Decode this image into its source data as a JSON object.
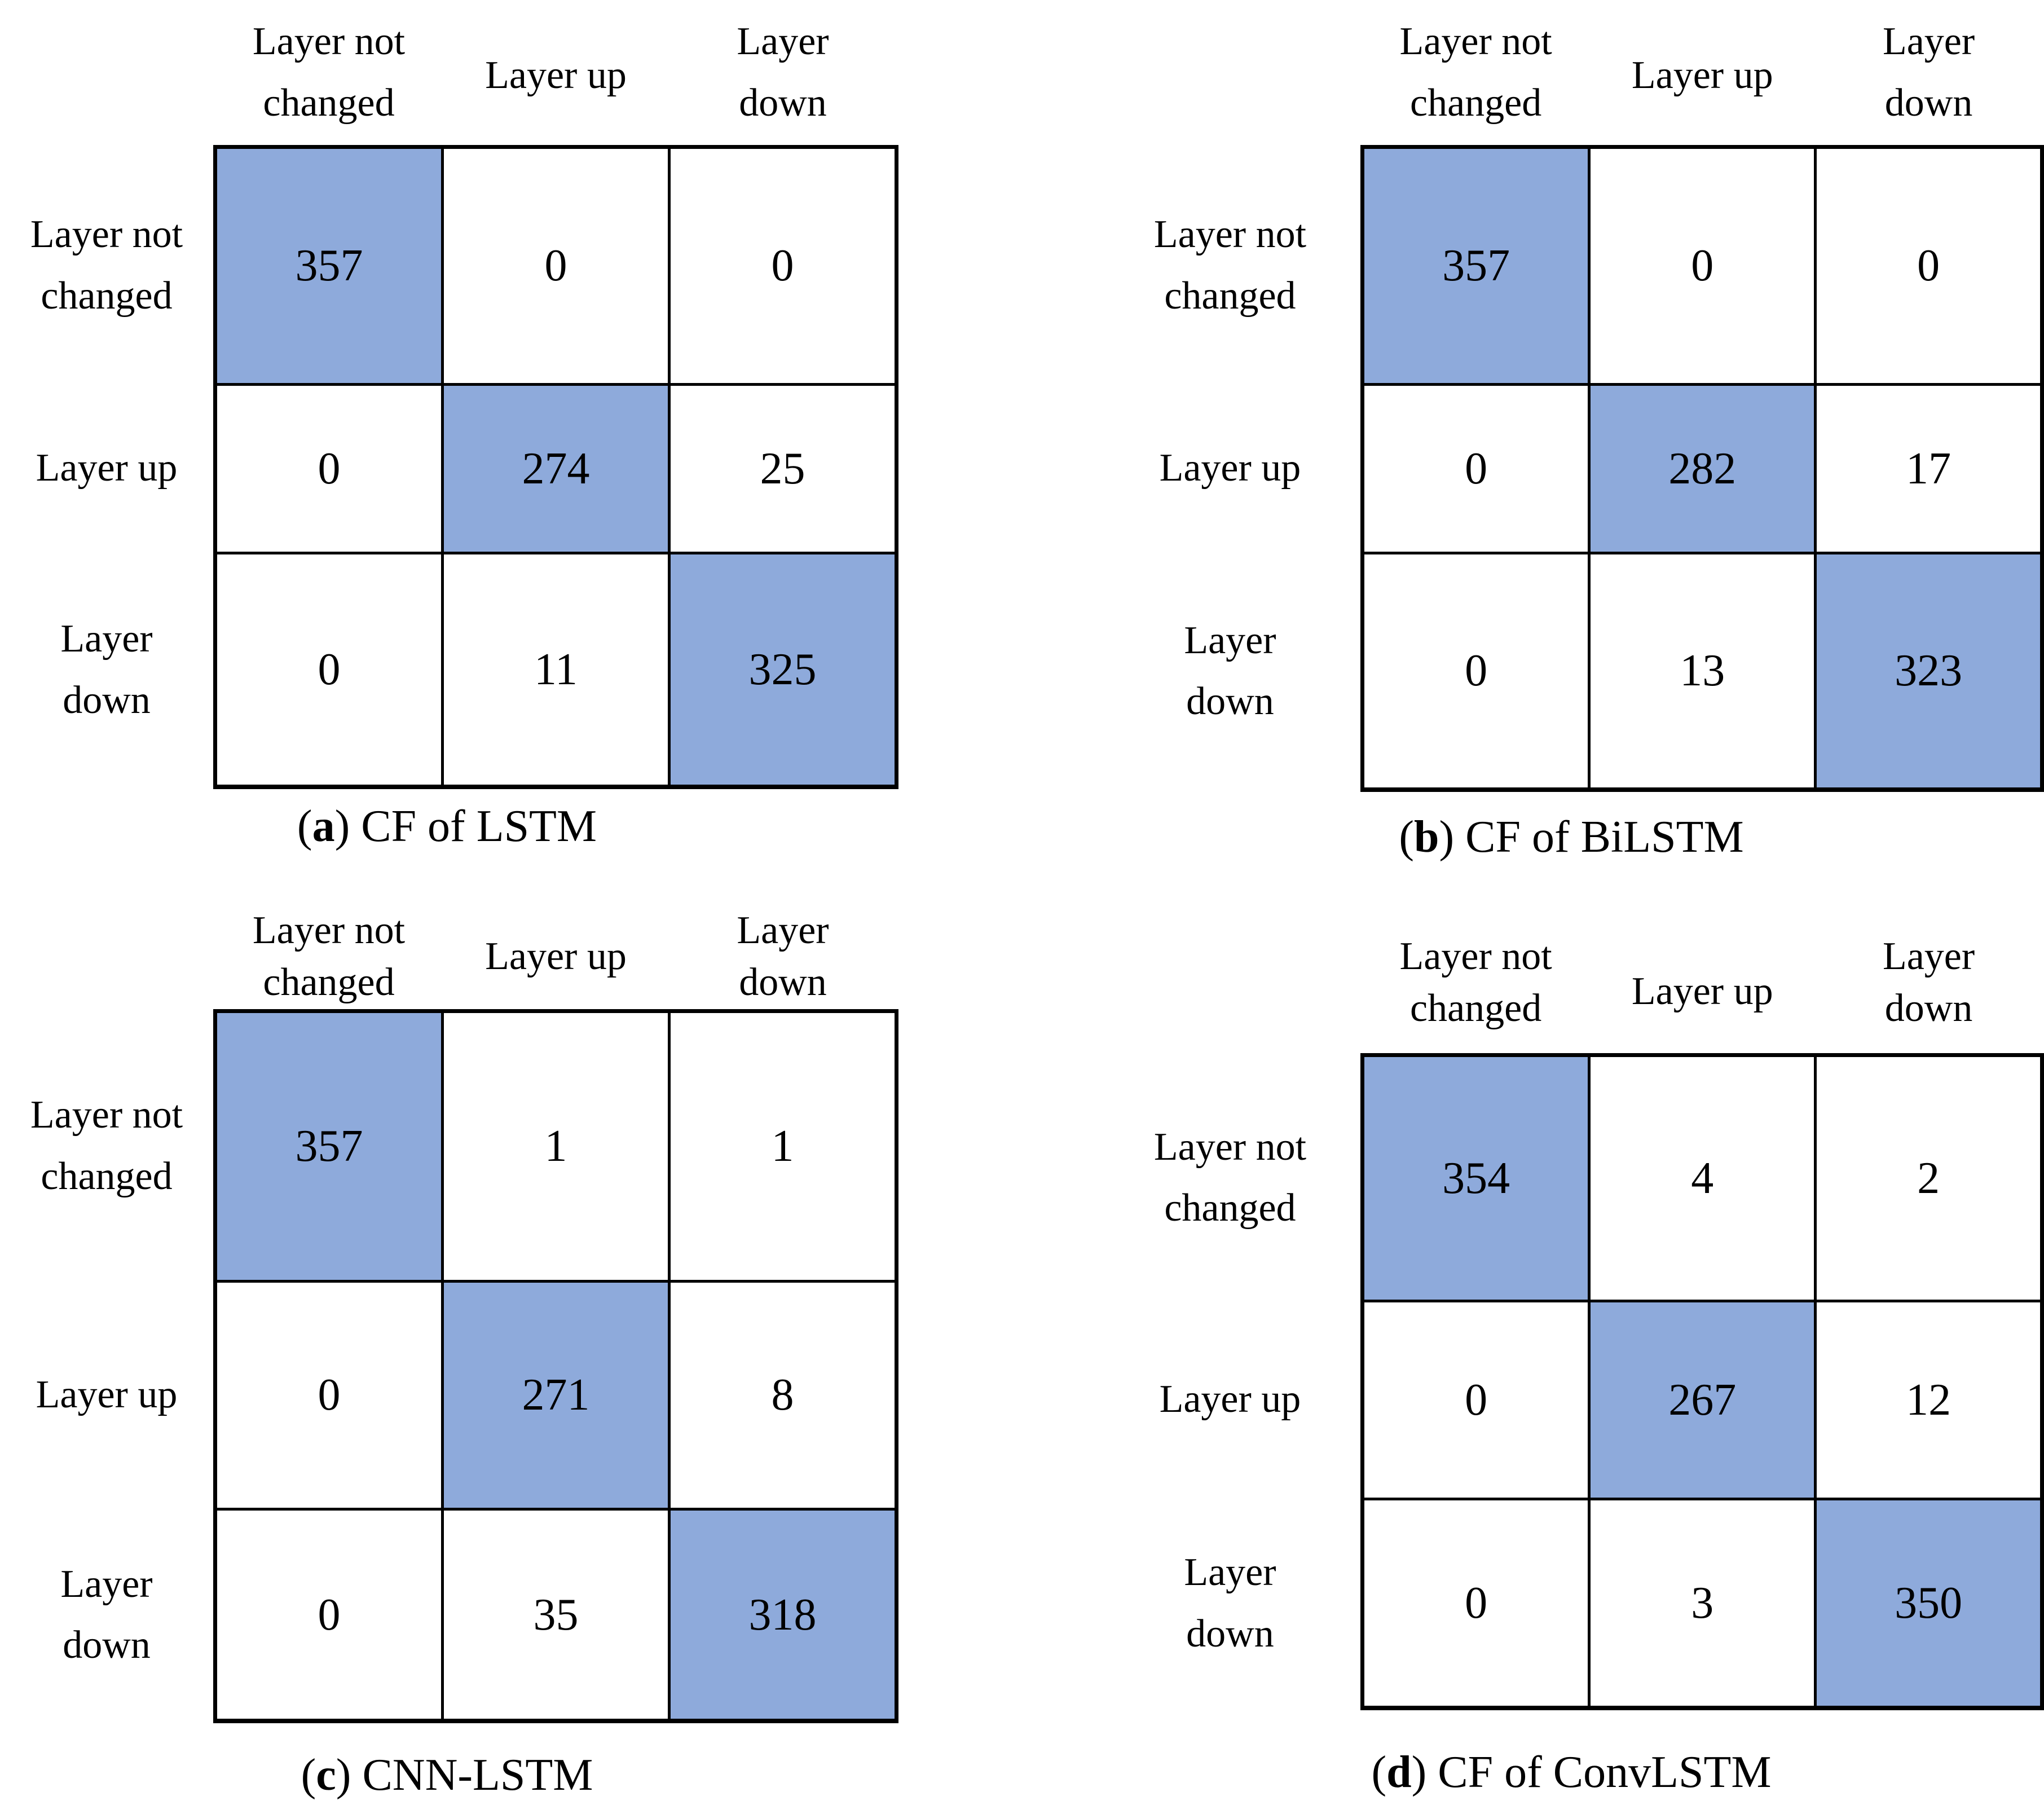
{
  "figure": {
    "background_color": "#ffffff",
    "highlight_color": "#8EAADB",
    "border_color": "#000000",
    "text_color": "#000000"
  },
  "panels": [
    {
      "cap_open": "(",
      "cap_letter": "a",
      "cap_rest": ") CF of LSTM",
      "col_headers": [
        {
          "l1": "Layer not",
          "l2": "changed"
        },
        {
          "l1": "Layer up",
          "l2": ""
        },
        {
          "l1": "Layer",
          "l2": "down"
        }
      ],
      "row_headers": [
        {
          "l1": "Layer not",
          "l2": "changed"
        },
        {
          "l1": "Layer up",
          "l2": ""
        },
        {
          "l1": "Layer",
          "l2": "down"
        }
      ],
      "matrix": [
        [
          "357",
          "0",
          "0"
        ],
        [
          "0",
          "274",
          "25"
        ],
        [
          "0",
          "11",
          "325"
        ]
      ]
    },
    {
      "cap_open": "(",
      "cap_letter": "b",
      "cap_rest": ") CF of BiLSTM",
      "col_headers": [
        {
          "l1": "Layer not",
          "l2": "changed"
        },
        {
          "l1": "Layer up",
          "l2": ""
        },
        {
          "l1": "Layer",
          "l2": "down"
        }
      ],
      "row_headers": [
        {
          "l1": "Layer not",
          "l2": "changed"
        },
        {
          "l1": "Layer up",
          "l2": ""
        },
        {
          "l1": "Layer",
          "l2": "down"
        }
      ],
      "matrix": [
        [
          "357",
          "0",
          "0"
        ],
        [
          "0",
          "282",
          "17"
        ],
        [
          "0",
          "13",
          "323"
        ]
      ]
    },
    {
      "cap_open": "(",
      "cap_letter": "c",
      "cap_rest": ") CNN-LSTM",
      "col_headers": [
        {
          "l1": "Layer not",
          "l2": "changed"
        },
        {
          "l1": "Layer up",
          "l2": ""
        },
        {
          "l1": "Layer",
          "l2": "down"
        }
      ],
      "row_headers": [
        {
          "l1": "Layer not",
          "l2": "changed"
        },
        {
          "l1": "Layer up",
          "l2": ""
        },
        {
          "l1": "Layer",
          "l2": "down"
        }
      ],
      "matrix": [
        [
          "357",
          "1",
          "1"
        ],
        [
          "0",
          "271",
          "8"
        ],
        [
          "0",
          "35",
          "318"
        ]
      ]
    },
    {
      "cap_open": "(",
      "cap_letter": "d",
      "cap_rest": ") CF of ConvLSTM",
      "col_headers": [
        {
          "l1": "Layer not",
          "l2": "changed"
        },
        {
          "l1": "Layer up",
          "l2": ""
        },
        {
          "l1": "Layer",
          "l2": "down"
        }
      ],
      "row_headers": [
        {
          "l1": "Layer not",
          "l2": "changed"
        },
        {
          "l1": "Layer up",
          "l2": ""
        },
        {
          "l1": "Layer",
          "l2": "down"
        }
      ],
      "matrix": [
        [
          "354",
          "4",
          "2"
        ],
        [
          "0",
          "267",
          "12"
        ],
        [
          "0",
          "3",
          "350"
        ]
      ]
    }
  ],
  "chart_data": [
    {
      "type": "heatmap",
      "title": "(a) CF of LSTM",
      "x_categories": [
        "Layer not changed",
        "Layer up",
        "Layer down"
      ],
      "y_categories": [
        "Layer not changed",
        "Layer up",
        "Layer down"
      ],
      "values": [
        [
          357,
          0,
          0
        ],
        [
          0,
          274,
          25
        ],
        [
          0,
          11,
          325
        ]
      ],
      "highlight": "diagonal",
      "highlight_color": "#8EAADB",
      "grid": true,
      "legend": false
    },
    {
      "type": "heatmap",
      "title": "(b) CF of BiLSTM",
      "x_categories": [
        "Layer not changed",
        "Layer up",
        "Layer down"
      ],
      "y_categories": [
        "Layer not changed",
        "Layer up",
        "Layer down"
      ],
      "values": [
        [
          357,
          0,
          0
        ],
        [
          0,
          282,
          17
        ],
        [
          0,
          13,
          323
        ]
      ],
      "highlight": "diagonal",
      "highlight_color": "#8EAADB",
      "grid": true,
      "legend": false
    },
    {
      "type": "heatmap",
      "title": "(c) CNN-LSTM",
      "x_categories": [
        "Layer not changed",
        "Layer up",
        "Layer down"
      ],
      "y_categories": [
        "Layer not changed",
        "Layer up",
        "Layer down"
      ],
      "values": [
        [
          357,
          1,
          1
        ],
        [
          0,
          271,
          8
        ],
        [
          0,
          35,
          318
        ]
      ],
      "highlight": "diagonal",
      "highlight_color": "#8EAADB",
      "grid": true,
      "legend": false
    },
    {
      "type": "heatmap",
      "title": "(d) CF of ConvLSTM",
      "x_categories": [
        "Layer not changed",
        "Layer up",
        "Layer down"
      ],
      "y_categories": [
        "Layer not changed",
        "Layer up",
        "Layer down"
      ],
      "values": [
        [
          354,
          4,
          2
        ],
        [
          0,
          267,
          12
        ],
        [
          0,
          3,
          350
        ]
      ],
      "highlight": "diagonal",
      "highlight_color": "#8EAADB",
      "grid": true,
      "legend": false
    }
  ]
}
